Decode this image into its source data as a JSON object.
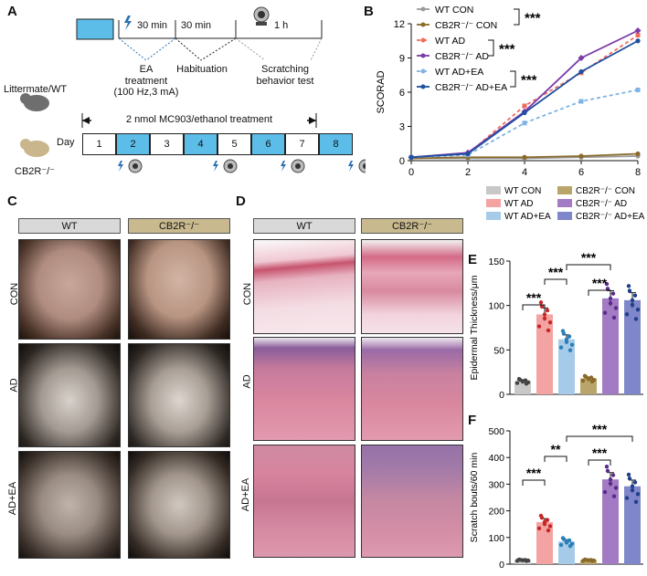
{
  "panels": {
    "a": "A",
    "b": "B",
    "c": "C",
    "d": "D",
    "e": "E",
    "f": "F"
  },
  "panelA": {
    "time1": "30 min",
    "time2": "30 min",
    "time3": "1 h",
    "step1": "EA",
    "step1b": "treatment",
    "step1c": "(100 Hz,3 mA)",
    "step2": "Habituation",
    "step3": "Scratching",
    "step3b": "behavior test",
    "mouse1": "Littermate/WT",
    "mouse2": "CB2R⁻/⁻",
    "day_label": "Day",
    "treatment": "2 nmol MC903/ethanol treatment",
    "days": [
      "1",
      "2",
      "3",
      "4",
      "5",
      "6",
      "7",
      "8"
    ]
  },
  "panelC": {
    "col_wt": "WT",
    "col_cb": "CB2R⁻/⁻",
    "rows": [
      "CON",
      "AD",
      "AD+EA"
    ]
  },
  "panelD": {
    "col_wt": "WT",
    "col_cb": "CB2R⁻/⁻",
    "rows": [
      "CON",
      "AD",
      "AD+EA"
    ]
  },
  "legendEF": [
    "WT CON",
    "CB2R⁻/⁻ CON",
    "WT AD",
    "CB2R⁻/⁻ AD",
    "WT AD+EA",
    "CB2R⁻/⁻ AD+EA"
  ],
  "colors": {
    "wtcon": "#c8c8c8",
    "cbcon": "#b9a46a",
    "wtad": "#f4a3a3",
    "cbad": "#a37bc4",
    "wtadea": "#a6cbe9",
    "cbadea": "#7f86c9"
  },
  "chart_data": [
    {
      "type": "line",
      "ylabel": "SCORAD",
      "x": [
        0,
        2,
        4,
        6,
        8
      ],
      "xlim": [
        0,
        8
      ],
      "ylim": [
        0,
        12
      ],
      "yticks": [
        0,
        3,
        6,
        9,
        12
      ],
      "series": [
        {
          "name": "WT CON",
          "values": [
            0.2,
            0.2,
            0.2,
            0.3,
            0.4
          ]
        },
        {
          "name": "CB2R⁻/⁻ CON",
          "values": [
            0.2,
            0.3,
            0.3,
            0.4,
            0.6
          ]
        },
        {
          "name": "WT AD",
          "values": [
            0.3,
            0.6,
            4.8,
            7.7,
            11.0
          ]
        },
        {
          "name": "CB2R⁻/⁻ AD",
          "values": [
            0.3,
            0.7,
            4.3,
            9.0,
            11.4
          ]
        },
        {
          "name": "WT AD+EA",
          "values": [
            0.3,
            0.5,
            3.3,
            5.2,
            6.2
          ]
        },
        {
          "name": "CB2R⁻/⁻ AD+EA",
          "values": [
            0.3,
            0.6,
            4.2,
            7.8,
            10.5
          ]
        }
      ],
      "significance": [
        "***",
        "***",
        "***"
      ]
    },
    {
      "type": "bar",
      "ylabel": "Epidermal Thickness/μm",
      "categories": [
        "WT CON",
        "WT AD",
        "WT AD+EA",
        "CB2R⁻/⁻ CON",
        "CB2R⁻/⁻ AD",
        "CB2R⁻/⁻ AD+EA"
      ],
      "values": [
        15,
        90,
        62,
        18,
        108,
        106
      ],
      "ylim": [
        0,
        150
      ],
      "yticks": [
        0,
        50,
        100,
        150
      ],
      "significance": [
        "***",
        "***",
        "***",
        "***"
      ]
    },
    {
      "type": "bar",
      "ylabel": "Scratch bouts/60 min",
      "categories": [
        "WT CON",
        "WT AD",
        "WT AD+EA",
        "CB2R⁻/⁻ CON",
        "CB2R⁻/⁻ AD",
        "CB2R⁻/⁻ AD+EA"
      ],
      "values": [
        15,
        158,
        85,
        15,
        318,
        292
      ],
      "ylim": [
        0,
        500
      ],
      "yticks": [
        0,
        100,
        200,
        300,
        400,
        500
      ],
      "significance": [
        "***",
        "**",
        "***",
        "***"
      ]
    }
  ]
}
